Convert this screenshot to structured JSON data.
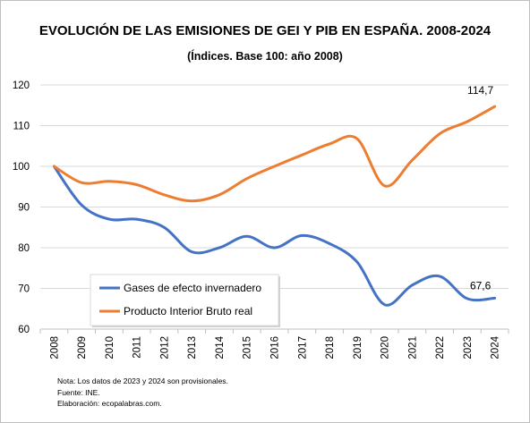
{
  "chart_data": {
    "type": "line",
    "title": "EVOLUCIÓN DE LAS EMISIONES DE GEI Y PIB EN ESPAÑA. 2008-2024",
    "subtitle": "(Índices. Base 100: año 2008)",
    "xlabel": "",
    "ylabel": "",
    "ylim": [
      60,
      120
    ],
    "yticks": [
      60,
      70,
      80,
      90,
      100,
      110,
      120
    ],
    "categories": [
      "2008",
      "2009",
      "2010",
      "2011",
      "2012",
      "2013",
      "2014",
      "2015",
      "2016",
      "2017",
      "2018",
      "2019",
      "2020",
      "2021",
      "2022",
      "2023",
      "2024"
    ],
    "grid": true,
    "legend_position": "bottom-left",
    "series": [
      {
        "name": "Gases de efecto invernadero",
        "color": "#4472c4",
        "values": [
          100,
          90.5,
          87,
          87,
          85,
          79,
          80,
          82.8,
          80,
          83,
          81,
          76.5,
          66,
          70.8,
          73,
          67.5,
          67.6
        ],
        "end_label": "67,6"
      },
      {
        "name": "Producto Interior Bruto real",
        "color": "#ed7d31",
        "values": [
          100,
          96,
          96.3,
          95.5,
          93,
          91.5,
          93,
          97,
          100,
          102.8,
          105.5,
          106.8,
          95.2,
          101.5,
          108,
          111,
          114.7
        ],
        "end_label": "114,7"
      }
    ]
  },
  "notes": [
    "Nota: Los datos de 2023 y 2024 son provisionales.",
    "Fuente: INE.",
    "Elaboración: ecopalabras.com."
  ]
}
